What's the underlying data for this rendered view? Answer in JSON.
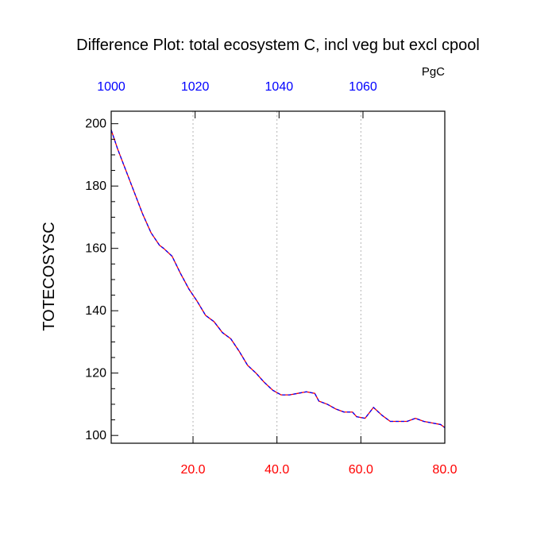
{
  "chart_data": {
    "type": "line",
    "title": "Difference Plot: total ecosystem C, incl veg but excl cpool",
    "units": "PgC",
    "ylabel": "TOTECOSYSC",
    "xlim": [
      0.5,
      80.0
    ],
    "ylim": [
      97.5,
      204
    ],
    "xticks_bottom": [
      {
        "value": 20,
        "label": "20.0"
      },
      {
        "value": 40,
        "label": "40.0"
      },
      {
        "value": 60,
        "label": "60.0"
      },
      {
        "value": 80,
        "label": "80.0"
      }
    ],
    "xticks_top": [
      {
        "value": 0.5,
        "label": "1000"
      },
      {
        "value": 20.5,
        "label": "1020"
      },
      {
        "value": 40.5,
        "label": "1040"
      },
      {
        "value": 60.5,
        "label": "1060"
      }
    ],
    "yticks": [
      100,
      120,
      140,
      160,
      180,
      200
    ],
    "grid": "vertical-dotted",
    "colors": {
      "bottom_tick_labels": "#ff0000",
      "top_tick_labels": "#0000ff",
      "line_primary": "#0000ff",
      "line_secondary": "#ff0000",
      "grid": "#b4b4b4"
    },
    "series": [
      {
        "x": [
          0.5,
          2,
          4,
          6,
          8,
          10,
          12,
          13,
          15,
          17,
          19,
          21,
          23,
          25,
          27,
          29,
          31,
          33,
          35,
          37,
          39,
          41,
          43,
          45,
          47,
          49,
          50,
          52,
          54,
          56,
          58,
          59,
          61,
          63,
          65,
          67,
          69,
          71,
          73,
          75,
          77,
          79,
          80
        ],
        "y": [
          198,
          192,
          185,
          178,
          171,
          165,
          161,
          160,
          157.5,
          152,
          147,
          143,
          138.5,
          136.5,
          133,
          131,
          127,
          122.5,
          120,
          117,
          114.5,
          113,
          113,
          113.5,
          114,
          113.5,
          111,
          110,
          108.5,
          107.5,
          107.5,
          106,
          105.5,
          109,
          106.5,
          104.5,
          104.5,
          104.5,
          105.5,
          104.5,
          104,
          103.5,
          102.5
        ]
      }
    ]
  }
}
